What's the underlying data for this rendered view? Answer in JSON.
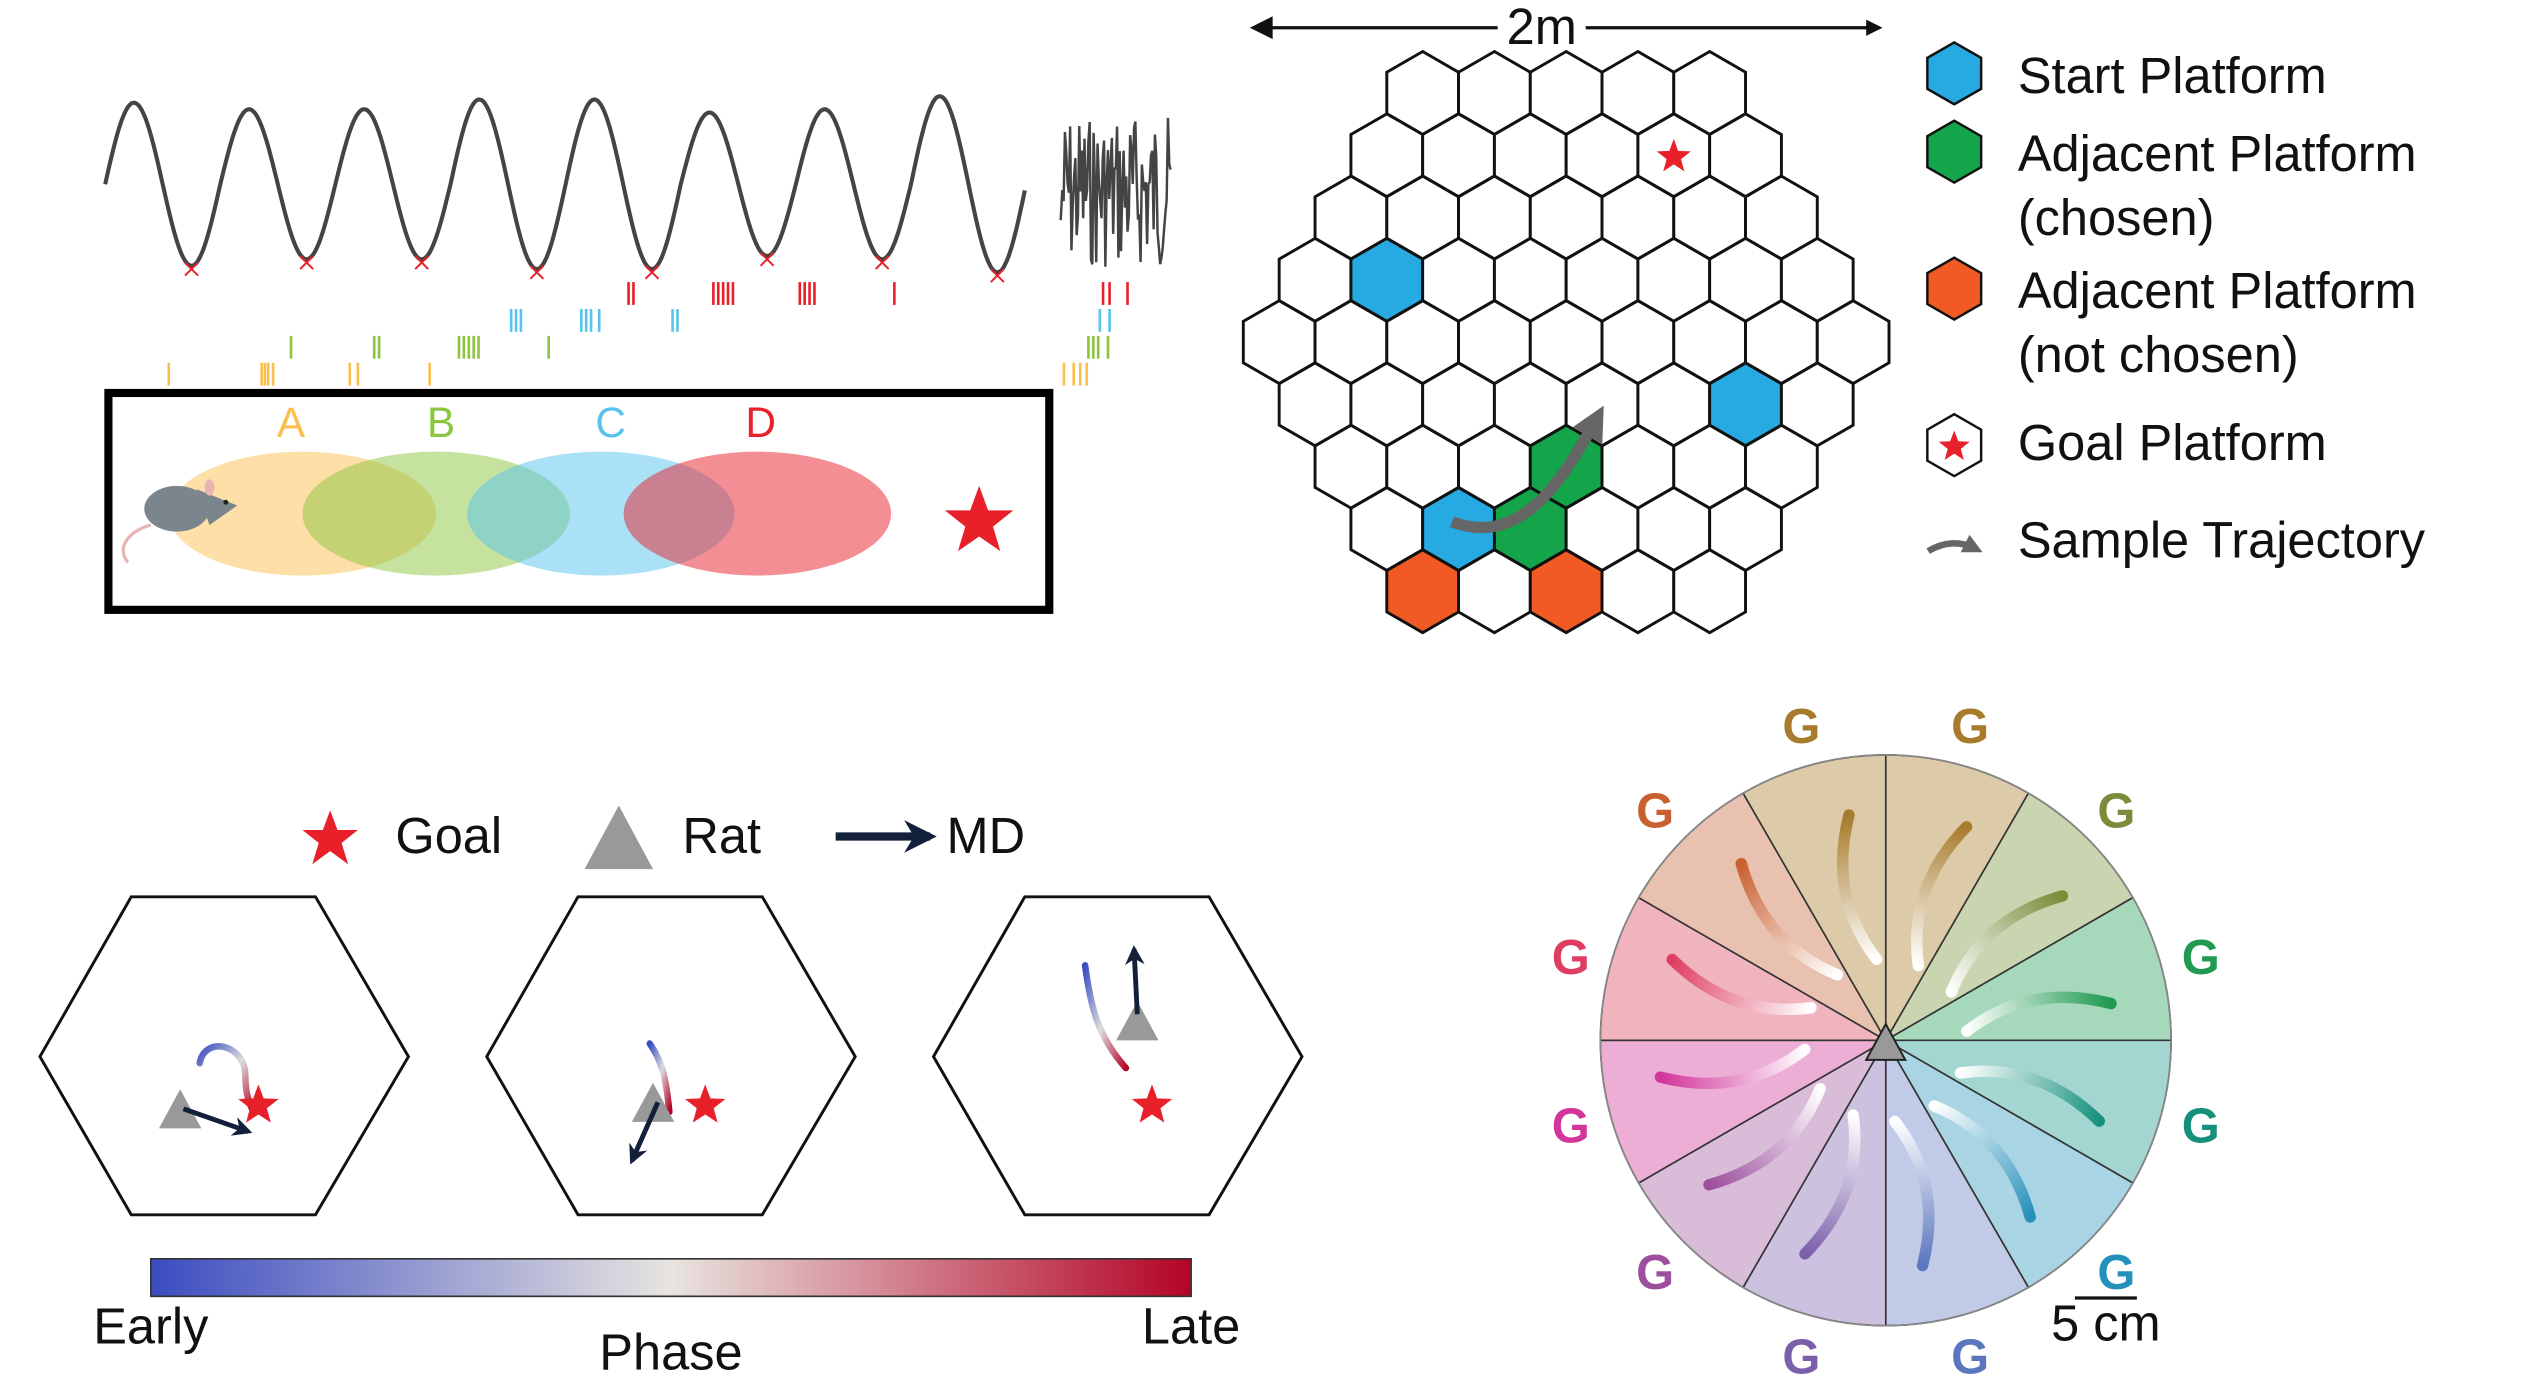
{
  "panel_a": {
    "field_labels": [
      "A",
      "B",
      "C",
      "D"
    ],
    "field_colors": [
      "#fbbf4f",
      "#8cc63f",
      "#58c4ee",
      "#e8202a"
    ],
    "spike_rows": [
      {
        "color": "#e8202a",
        "ticks": [
          385,
          388,
          437,
          440,
          443,
          446,
          449,
          490,
          493,
          496,
          499,
          548,
          676,
          680,
          691
        ]
      },
      {
        "color": "#58c4ee",
        "ticks": [
          313,
          316,
          319,
          356,
          359,
          362,
          367,
          412,
          415,
          674,
          680
        ]
      },
      {
        "color": "#8cc63f",
        "ticks": [
          178,
          229,
          232,
          281,
          284,
          287,
          290,
          293,
          336,
          667,
          670,
          673,
          679
        ]
      },
      {
        "color": "#fbbf4f",
        "ticks": [
          103,
          160,
          162,
          164,
          167,
          214,
          219,
          263,
          652,
          658,
          662,
          666
        ]
      }
    ]
  },
  "panel_b": {
    "scale_label": "2m",
    "legend": [
      {
        "label": "Start Platform",
        "color": "#27aae1"
      },
      {
        "label": "Adjacent Platform",
        "label2": "(chosen)",
        "color": "#14a54a"
      },
      {
        "label": "Adjacent Platform",
        "label2": "(not chosen)",
        "color": "#f15a24"
      },
      {
        "label": "Goal Platform"
      },
      {
        "label": "Sample Trajectory"
      }
    ],
    "grid_rows": [
      5,
      6,
      7,
      8,
      9,
      8,
      7,
      6,
      5
    ],
    "special_platforms": [
      {
        "row": 1,
        "col": 4,
        "type": "goal"
      },
      {
        "row": 3,
        "col": 1,
        "type": "start"
      },
      {
        "row": 5,
        "col": 6,
        "type": "start"
      },
      {
        "row": 7,
        "col": 1,
        "type": "start"
      },
      {
        "row": 6,
        "col": 3,
        "type": "chosen"
      },
      {
        "row": 7,
        "col": 2,
        "type": "chosen"
      },
      {
        "row": 8,
        "col": 0,
        "type": "not_chosen"
      },
      {
        "row": 8,
        "col": 2,
        "type": "not_chosen"
      }
    ]
  },
  "panel_c": {
    "legend": {
      "goal": "Goal",
      "rat": "Rat",
      "md": "MD"
    },
    "colorbar": {
      "left": "Early",
      "center": "Phase",
      "right": "Late"
    }
  },
  "panel_d": {
    "goal_label": "G",
    "scale_label": "5 cm",
    "sectors": [
      {
        "fill": "#dccaa8",
        "color": "#a87b2c"
      },
      {
        "fill": "#c9d4b0",
        "color": "#7a8c3a"
      },
      {
        "fill": "#a6d9bb",
        "color": "#1f9a50"
      },
      {
        "fill": "#a3d6d0",
        "color": "#16907c"
      },
      {
        "fill": "#a9d4e4",
        "color": "#2590bb"
      },
      {
        "fill": "#c1cae6",
        "color": "#5c76be"
      },
      {
        "fill": "#ccc1de",
        "color": "#7b5fab"
      },
      {
        "fill": "#d8bcd8",
        "color": "#9d4f9e"
      },
      {
        "fill": "#edaed5",
        "color": "#d2369a"
      },
      {
        "fill": "#f0b4bf",
        "color": "#df3e62"
      },
      {
        "fill": "#e9c1b0",
        "color": "#c9602f"
      },
      {
        "fill": "#dccaa8",
        "color": "#a87b2c"
      }
    ]
  }
}
